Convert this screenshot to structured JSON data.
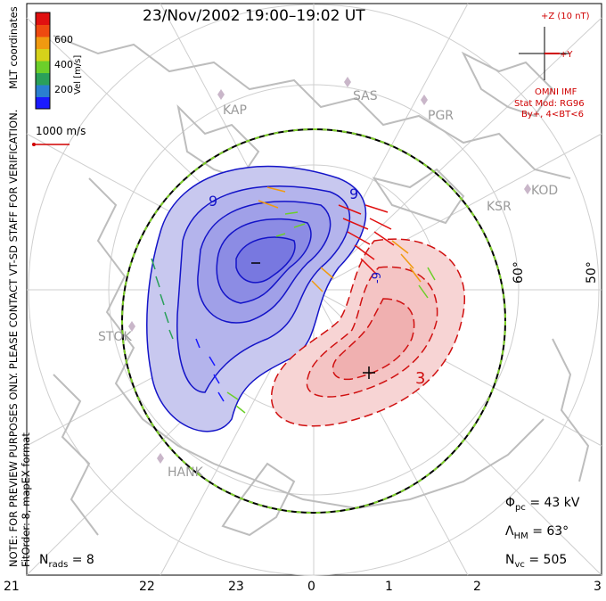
{
  "title": "23/Nov/2002 19:00–19:02 UT",
  "side_notes": {
    "coords": "MLT coordinates",
    "preview": "NOTE: FOR PREVIEW PURPOSES ONLY. PLEASE CONTACT VT-SD STAFF FOR VERIFICATION.",
    "fit": "FitOrder: 8, mapEX format"
  },
  "colorbar": {
    "label": "Vel [m/s]",
    "ticks": [
      "600",
      "400",
      "200"
    ],
    "colors": [
      "#1a1aff",
      "#2a7fd0",
      "#2aa05a",
      "#6ccf2a",
      "#d6d21a",
      "#f09a10",
      "#ee4a10",
      "#e01010"
    ]
  },
  "scale_vector": "1000 m/s",
  "imf": {
    "z_label": "+Z (10 nT)",
    "y_label": "+Y",
    "source": "OMNI IMF",
    "model": "Stat Mod: RG96",
    "condition": "By+, 4<BT<6"
  },
  "stations": [
    "KAP",
    "SAS",
    "PGR",
    "KOD",
    "KSR",
    "STOK",
    "HANK"
  ],
  "latitude_labels": [
    "60°",
    "50°"
  ],
  "contour_labels": [
    "9",
    "9",
    "-9",
    "3"
  ],
  "mlt_ticks": [
    "21",
    "22",
    "23",
    "0",
    "1",
    "2",
    "3"
  ],
  "stats": {
    "phi_symbol": "Φ",
    "phi_sub": "pc",
    "phi_value": "= 43 kV",
    "lambda_symbol": "Λ",
    "lambda_sub": "HM",
    "lambda_value": "= 63°",
    "n_symbol": "N",
    "n_sub": "vc",
    "n_value": "= 505",
    "rads_symbol": "N",
    "rads_sub": "rads",
    "rads_value": "= 8"
  }
}
